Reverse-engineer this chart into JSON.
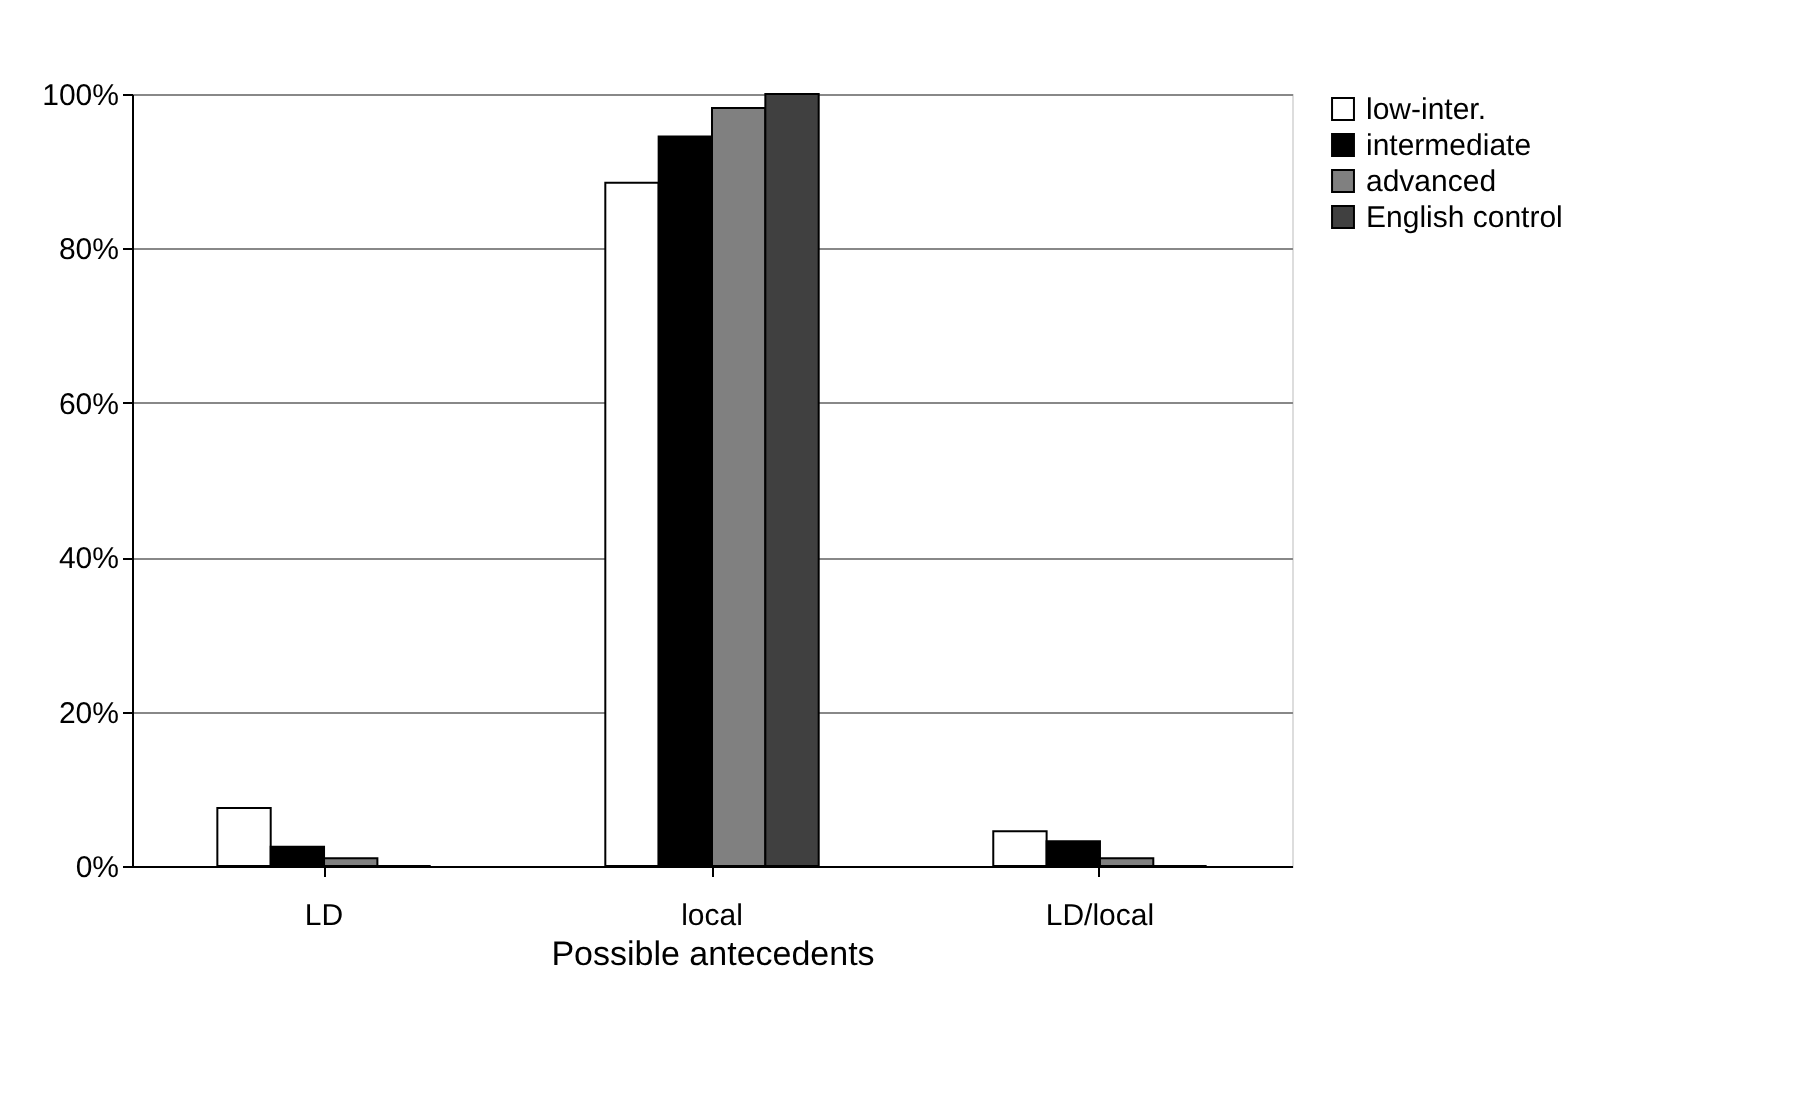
{
  "chart_data": {
    "type": "bar",
    "xlabel": "Possible antecedents",
    "categories": [
      "LD",
      "local",
      "LD/local"
    ],
    "series": [
      {
        "name": "low-inter.",
        "color": "#ffffff",
        "values": [
          7.5,
          88.5,
          4.5
        ]
      },
      {
        "name": "intermediate",
        "color": "#000000",
        "values": [
          2.5,
          94.5,
          3.2
        ]
      },
      {
        "name": "advanced",
        "color": "#808080",
        "values": [
          1,
          98.2,
          1
        ]
      },
      {
        "name": "English control",
        "color": "#404040",
        "values": [
          0,
          100,
          0
        ]
      }
    ],
    "ylim": [
      0,
      100
    ],
    "yticks": [
      {
        "value": 0,
        "label": "0%"
      },
      {
        "value": 20,
        "label": "20%"
      },
      {
        "value": 40,
        "label": "40%"
      },
      {
        "value": 60,
        "label": "60%"
      },
      {
        "value": 80,
        "label": "80%"
      },
      {
        "value": 100,
        "label": "100%"
      }
    ],
    "grid": "y",
    "legend": "right"
  }
}
